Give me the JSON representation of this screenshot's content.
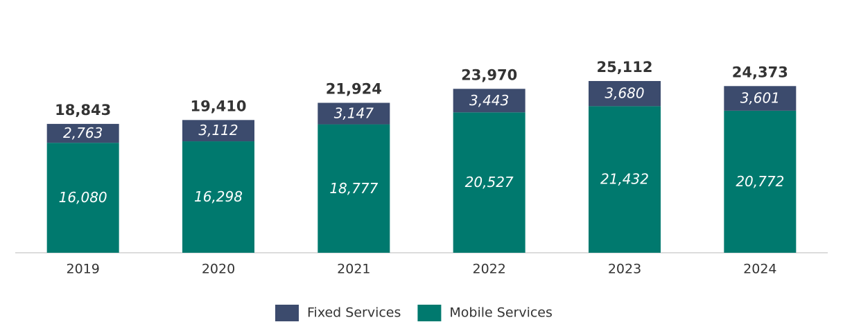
{
  "chart_data": {
    "type": "stacked_bar",
    "categories": [
      "2019",
      "2020",
      "2021",
      "2022",
      "2023",
      "2024"
    ],
    "series": [
      {
        "name": "Mobile Services",
        "color": "#00796e",
        "values": [
          16080,
          16298,
          18777,
          20527,
          21432,
          20772
        ],
        "value_labels": [
          "16,080",
          "16,298",
          "18,777",
          "20,527",
          "21,432",
          "20,772"
        ]
      },
      {
        "name": "Fixed Services",
        "color": "#3c4b6d",
        "values": [
          2763,
          3112,
          3147,
          3443,
          3680,
          3601
        ],
        "value_labels": [
          "2,763",
          "3,112",
          "3,147",
          "3,443",
          "3,680",
          "3,601"
        ]
      }
    ],
    "totals": [
      18843,
      19410,
      21924,
      23970,
      25112,
      24373
    ],
    "total_labels": [
      "18,843",
      "19,410",
      "21,924",
      "23,970",
      "25,112",
      "24,373"
    ],
    "legend": "bottom"
  }
}
